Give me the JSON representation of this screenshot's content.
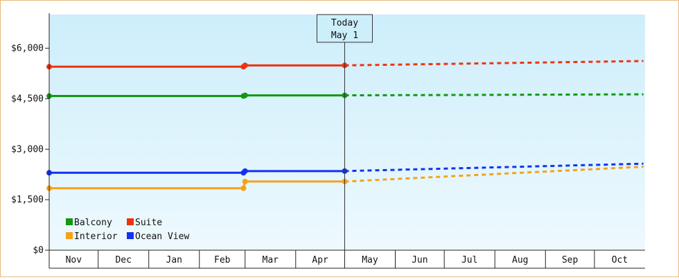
{
  "chart_data": {
    "type": "line",
    "x_months": [
      "Nov",
      "Dec",
      "Jan",
      "Feb",
      "Mar",
      "Apr",
      "May",
      "Jun",
      "Jul",
      "Aug",
      "Sep",
      "Oct"
    ],
    "ylim": [
      0,
      7000
    ],
    "y_ticks": [
      {
        "value": 0,
        "label": "$0"
      },
      {
        "value": 1500,
        "label": "$1,500"
      },
      {
        "value": 3000,
        "label": "$3,000"
      },
      {
        "value": 4500,
        "label": "$4,500"
      },
      {
        "value": 6000,
        "label": "$6,000"
      }
    ],
    "today_marker": {
      "line1": "Today",
      "line2": "May 1"
    },
    "grid": false,
    "legend_placement": "bottom-left",
    "series": [
      {
        "name": "Balcony",
        "color": "#119911",
        "actual": [
          [
            "Nov 1",
            4580
          ],
          [
            "Feb 28",
            4580
          ],
          [
            "Mar 1",
            4600
          ],
          [
            "May 1",
            4600
          ]
        ],
        "forecast": [
          [
            "May 1",
            4600
          ],
          [
            "Oct 31",
            4630
          ]
        ]
      },
      {
        "name": "Suite",
        "color": "#ee3311",
        "actual": [
          [
            "Nov 1",
            5450
          ],
          [
            "Feb 28",
            5450
          ],
          [
            "Mar 1",
            5490
          ],
          [
            "May 1",
            5490
          ]
        ],
        "forecast": [
          [
            "May 1",
            5490
          ],
          [
            "Oct 31",
            5620
          ]
        ]
      },
      {
        "name": "Interior",
        "color": "#f5a21a",
        "actual": [
          [
            "Nov 1",
            1840
          ],
          [
            "Feb 28",
            1840
          ],
          [
            "Mar 1",
            2040
          ],
          [
            "May 1",
            2040
          ]
        ],
        "forecast": [
          [
            "May 1",
            2040
          ],
          [
            "Oct 31",
            2480
          ]
        ]
      },
      {
        "name": "Ocean View",
        "color": "#1133ee",
        "actual": [
          [
            "Nov 1",
            2300
          ],
          [
            "Feb 28",
            2300
          ],
          [
            "Mar 1",
            2350
          ],
          [
            "May 1",
            2350
          ]
        ],
        "forecast": [
          [
            "May 1",
            2350
          ],
          [
            "Oct 31",
            2570
          ]
        ]
      }
    ]
  }
}
